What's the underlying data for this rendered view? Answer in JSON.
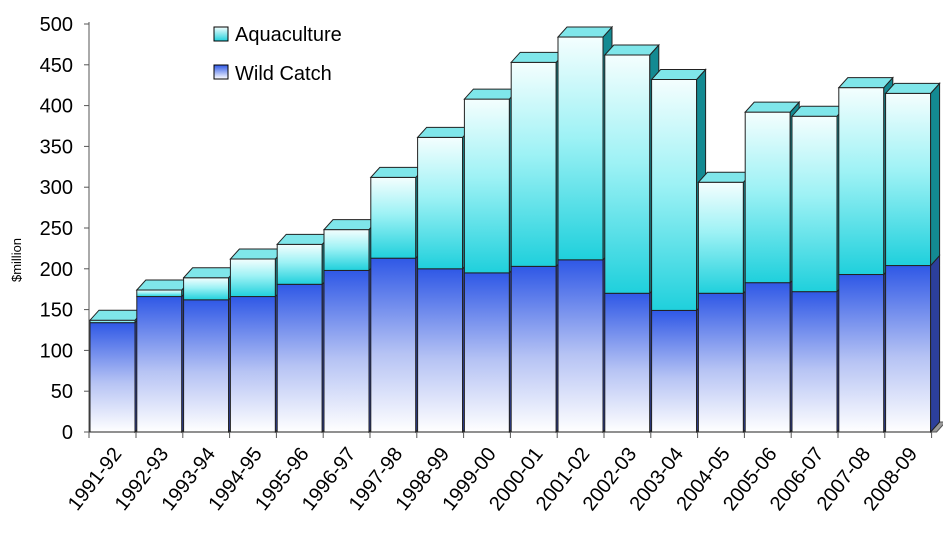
{
  "chart_data": {
    "type": "bar",
    "stacked": true,
    "three_d": true,
    "ylabel": "$million",
    "xlabel": "",
    "ylim": [
      0,
      500
    ],
    "yticks": [
      0,
      50,
      100,
      150,
      200,
      250,
      300,
      350,
      400,
      450,
      500
    ],
    "categories": [
      "1991-92",
      "1992-93",
      "1993-94",
      "1994-95",
      "1995-96",
      "1996-97",
      "1997-98",
      "1998-99",
      "1999-00",
      "2000-01",
      "2001-02",
      "2002-03",
      "2003-04",
      "2004-05",
      "2005-06",
      "2006-07",
      "2007-08",
      "2008-09"
    ],
    "series": [
      {
        "name": "Wild Catch",
        "color": "#3a5fe0",
        "values": [
          134,
          166,
          162,
          166,
          181,
          198,
          213,
          200,
          195,
          203,
          211,
          170,
          149,
          170,
          183,
          172,
          193,
          204
        ]
      },
      {
        "name": "Aquaculture",
        "color": "#20d8e0",
        "values": [
          3,
          8,
          27,
          46,
          49,
          50,
          99,
          161,
          213,
          250,
          273,
          292,
          283,
          136,
          209,
          215,
          229,
          211
        ]
      }
    ],
    "legend": {
      "position": "top-left",
      "order": [
        "Aquaculture",
        "Wild Catch"
      ]
    },
    "grid": false
  }
}
